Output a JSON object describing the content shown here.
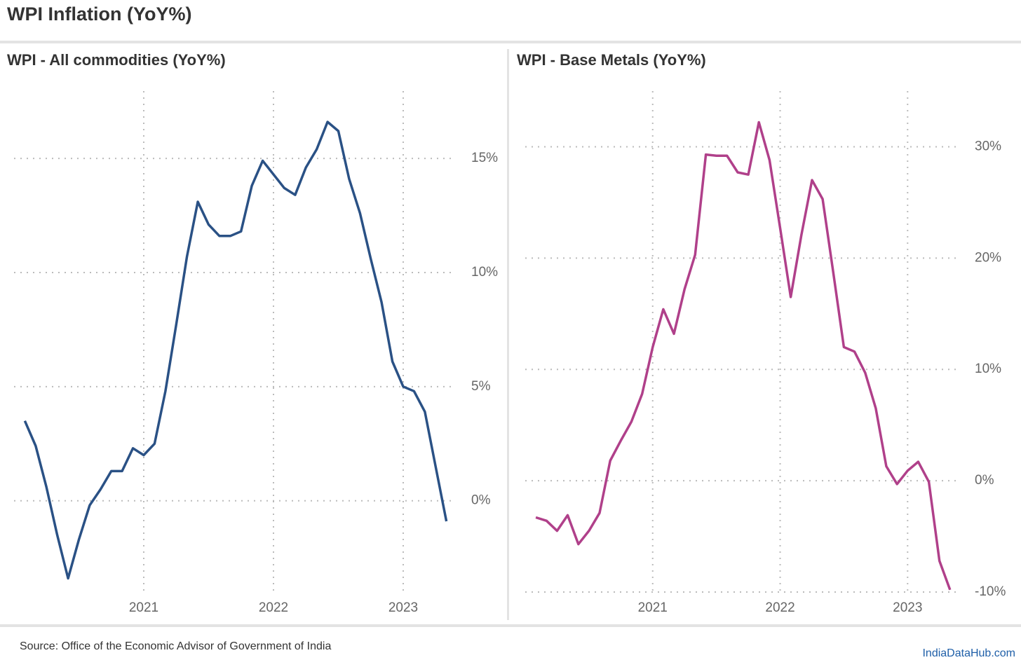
{
  "title": "WPI Inflation (YoY%)",
  "source": "Source: Office of the Economic Advisor of Government of India",
  "brand": "IndiaDataHub.com",
  "chart_data": [
    {
      "type": "line",
      "title": "WPI - All commodities (YoY%)",
      "x": [
        2020.083,
        2020.167,
        2020.25,
        2020.333,
        2020.417,
        2020.5,
        2020.583,
        2020.667,
        2020.75,
        2020.833,
        2020.917,
        2021.0,
        2021.083,
        2021.167,
        2021.25,
        2021.333,
        2021.417,
        2021.5,
        2021.583,
        2021.667,
        2021.75,
        2021.833,
        2021.917,
        2022.0,
        2022.083,
        2022.167,
        2022.25,
        2022.333,
        2022.417,
        2022.5,
        2022.583,
        2022.667,
        2022.75,
        2022.833,
        2022.917,
        2023.0,
        2023.083,
        2023.167,
        2023.25,
        2023.333
      ],
      "values": [
        3.5,
        2.4,
        0.6,
        -1.5,
        -3.4,
        -1.7,
        -0.2,
        0.5,
        1.3,
        1.3,
        2.3,
        2.0,
        2.5,
        4.8,
        7.7,
        10.7,
        13.1,
        12.1,
        11.6,
        11.6,
        11.8,
        13.8,
        14.9,
        14.3,
        13.7,
        13.4,
        14.6,
        15.4,
        16.6,
        16.2,
        14.1,
        12.6,
        10.6,
        8.7,
        6.1,
        5.0,
        4.8,
        3.9,
        1.5,
        -0.9
      ],
      "color": "#2a5185",
      "xlim": [
        2020,
        2023.4
      ],
      "xticks": [
        2021,
        2022,
        2023
      ],
      "ylim": [
        -4,
        17.95
      ],
      "yticks": [
        {
          "value": 0,
          "label": "0%"
        },
        {
          "value": 5,
          "label": "5%"
        },
        {
          "value": 10,
          "label": "10%"
        },
        {
          "value": 15,
          "label": "15%"
        }
      ],
      "grid": true
    },
    {
      "type": "line",
      "title": "WPI - Base Metals (YoY%)",
      "x": [
        2020.083,
        2020.167,
        2020.25,
        2020.333,
        2020.417,
        2020.5,
        2020.583,
        2020.667,
        2020.75,
        2020.833,
        2020.917,
        2021.0,
        2021.083,
        2021.167,
        2021.25,
        2021.333,
        2021.417,
        2021.5,
        2021.583,
        2021.667,
        2021.75,
        2021.833,
        2021.917,
        2022.0,
        2022.083,
        2022.167,
        2022.25,
        2022.333,
        2022.417,
        2022.5,
        2022.583,
        2022.667,
        2022.75,
        2022.833,
        2022.917,
        2023.0,
        2023.083,
        2023.167,
        2023.25,
        2023.333
      ],
      "values": [
        -3.3,
        -3.6,
        -4.5,
        -3.1,
        -5.7,
        -4.5,
        -2.9,
        1.8,
        3.6,
        5.3,
        7.8,
        12.0,
        15.4,
        13.2,
        17.2,
        20.3,
        29.3,
        29.2,
        29.2,
        27.7,
        27.5,
        32.2,
        28.8,
        22.7,
        16.5,
        22.1,
        27.0,
        25.3,
        18.7,
        12.0,
        11.6,
        9.7,
        6.5,
        1.3,
        -0.3,
        0.9,
        1.7,
        -0.1,
        -7.2,
        -9.8
      ],
      "color": "#b0408a",
      "xlim": [
        2020,
        2023.4
      ],
      "xticks": [
        2021,
        2022,
        2023
      ],
      "ylim": [
        -10,
        35
      ],
      "yticks": [
        {
          "value": -10,
          "label": "-10%"
        },
        {
          "value": 0,
          "label": "0%"
        },
        {
          "value": 10,
          "label": "10%"
        },
        {
          "value": 20,
          "label": "20%"
        },
        {
          "value": 30,
          "label": "30%"
        }
      ],
      "grid": true
    }
  ]
}
